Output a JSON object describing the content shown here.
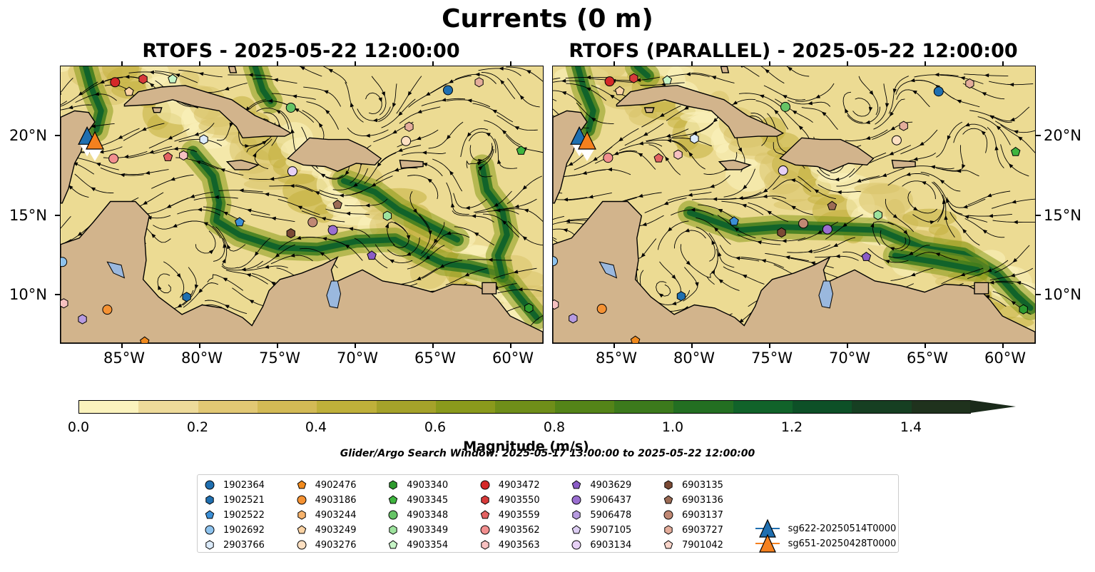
{
  "figure": {
    "title": "Currents (0 m)"
  },
  "panels": [
    {
      "title": "RTOFS - 2025-05-22 12:00:00"
    },
    {
      "title": "RTOFS (PARALLEL) - 2025-05-22 12:00:00"
    }
  ],
  "axes": {
    "x_labels": [
      "85°W",
      "80°W",
      "75°W",
      "70°W",
      "65°W",
      "60°W"
    ],
    "y_labels": [
      "20°N",
      "15°N",
      "10°N"
    ]
  },
  "colorbar": {
    "label": "Magnitude (m/s)",
    "ticks": [
      "0.0",
      "0.2",
      "0.4",
      "0.6",
      "0.8",
      "1.0",
      "1.2",
      "1.4"
    ],
    "colors": [
      "#fbf3bd",
      "#eedb9a",
      "#e2c874",
      "#d3ba55",
      "#bfb03a",
      "#a5a22a",
      "#8a9a1c",
      "#6f8e19",
      "#548418",
      "#3c7a1c",
      "#236f22",
      "#11632a",
      "#0d5027",
      "#163f22",
      "#1f321d",
      "#1c281a"
    ]
  },
  "search_window": "Glider/Argo Search Window: 2025-05-17 13:00:00 to 2025-05-22 12:00:00",
  "legend": [
    {
      "label": "1902364",
      "marker": "circle",
      "color": "#1f6fb0"
    },
    {
      "label": "1902521",
      "marker": "hexagon",
      "color": "#1f6fb0"
    },
    {
      "label": "1902522",
      "marker": "pentagon",
      "color": "#3b8fd6"
    },
    {
      "label": "1902692",
      "marker": "circle",
      "color": "#8ec3ee"
    },
    {
      "label": "2903766",
      "marker": "hexagon",
      "color": "#dcebfa"
    },
    {
      "label": "4902476",
      "marker": "pentagon",
      "color": "#f08a1e"
    },
    {
      "label": "4903186",
      "marker": "circle",
      "color": "#f59233"
    },
    {
      "label": "4903244",
      "marker": "hexagon",
      "color": "#f6b26b"
    },
    {
      "label": "4903249",
      "marker": "pentagon",
      "color": "#fbd3a4"
    },
    {
      "label": "4903276",
      "marker": "circle",
      "color": "#fde0c2"
    },
    {
      "label": "4903340",
      "marker": "hexagon",
      "color": "#2e9a2e"
    },
    {
      "label": "4903345",
      "marker": "pentagon",
      "color": "#3fb53f"
    },
    {
      "label": "4903348",
      "marker": "circle",
      "color": "#66c466"
    },
    {
      "label": "4903349",
      "marker": "hexagon",
      "color": "#9ee39e"
    },
    {
      "label": "4903354",
      "marker": "pentagon",
      "color": "#c7f5c7"
    },
    {
      "label": "4903472",
      "marker": "circle",
      "color": "#d42828"
    },
    {
      "label": "4903550",
      "marker": "hexagon",
      "color": "#d83a3a"
    },
    {
      "label": "4903559",
      "marker": "pentagon",
      "color": "#e36262"
    },
    {
      "label": "4903562",
      "marker": "circle",
      "color": "#f28f8f"
    },
    {
      "label": "4903563",
      "marker": "hexagon",
      "color": "#f7c1c1"
    },
    {
      "label": "4903629",
      "marker": "pentagon",
      "color": "#8a5cc6"
    },
    {
      "label": "5906437",
      "marker": "circle",
      "color": "#9a6ed0"
    },
    {
      "label": "5906478",
      "marker": "hexagon",
      "color": "#b79be0"
    },
    {
      "label": "5907105",
      "marker": "pentagon",
      "color": "#dccdf2"
    },
    {
      "label": "6903134",
      "marker": "circle",
      "color": "#e7d1f5"
    },
    {
      "label": "6903135",
      "marker": "hexagon",
      "color": "#7b4a35"
    },
    {
      "label": "6903136",
      "marker": "pentagon",
      "color": "#9b6b55"
    },
    {
      "label": "6903137",
      "marker": "circle",
      "color": "#c08874"
    },
    {
      "label": "6903727",
      "marker": "hexagon",
      "color": "#e4ad9b"
    },
    {
      "label": "7901042",
      "marker": "pentagon",
      "color": "#f9d5ca"
    },
    {
      "label": "sg622-20250514T0000",
      "marker": "triangle",
      "color": "#1f6fb0"
    },
    {
      "label": "sg651-20250428T0000",
      "marker": "triangle",
      "color": "#f5801e"
    }
  ],
  "map_extent": {
    "lon_min": -89,
    "lon_max": -58,
    "lat_min": 7,
    "lat_max": 24.4
  },
  "floats_panel1": [
    {
      "c": "#1f6fb0",
      "m": "circle",
      "lon": -64.1,
      "lat": 22.9
    },
    {
      "c": "#d42828",
      "m": "circle",
      "lon": -85.5,
      "lat": 23.4
    },
    {
      "c": "#d83a3a",
      "m": "hexagon",
      "lon": -83.7,
      "lat": 23.6
    },
    {
      "c": "#c7f5c7",
      "m": "pentagon",
      "lon": -81.8,
      "lat": 23.6
    },
    {
      "c": "#fbd3a4",
      "m": "pentagon",
      "lon": -84.6,
      "lat": 22.8
    },
    {
      "c": "#66c466",
      "m": "circle",
      "lon": -74.2,
      "lat": 21.8
    },
    {
      "c": "#e4ad9b",
      "m": "hexagon",
      "lon": -62.1,
      "lat": 23.4
    },
    {
      "c": "#e4ad9b",
      "m": "hexagon",
      "lon": -66.6,
      "lat": 20.6
    },
    {
      "c": "#fde0c2",
      "m": "circle",
      "lon": -66.8,
      "lat": 19.7
    },
    {
      "c": "#3fb53f",
      "m": "pentagon",
      "lon": -59.4,
      "lat": 19.1
    },
    {
      "c": "#dcebfa",
      "m": "hexagon",
      "lon": -79.8,
      "lat": 19.8
    },
    {
      "c": "#f28f8f",
      "m": "circle",
      "lon": -85.6,
      "lat": 18.6
    },
    {
      "c": "#e36262",
      "m": "pentagon",
      "lon": -82.1,
      "lat": 18.7
    },
    {
      "c": "#f7c1c1",
      "m": "hexagon",
      "lon": -81.1,
      "lat": 18.8
    },
    {
      "c": "#e7d1f5",
      "m": "circle",
      "lon": -74.1,
      "lat": 17.8
    },
    {
      "c": "#9b6b55",
      "m": "pentagon",
      "lon": -71.2,
      "lat": 15.7
    },
    {
      "c": "#9ee39e",
      "m": "hexagon",
      "lon": -68.0,
      "lat": 15.0
    },
    {
      "c": "#3b8fd6",
      "m": "pentagon",
      "lon": -77.5,
      "lat": 14.6
    },
    {
      "c": "#c08874",
      "m": "circle",
      "lon": -72.8,
      "lat": 14.6
    },
    {
      "c": "#9a6ed0",
      "m": "circle",
      "lon": -71.5,
      "lat": 14.1
    },
    {
      "c": "#7b4a35",
      "m": "hexagon",
      "lon": -74.2,
      "lat": 13.9
    },
    {
      "c": "#8a5cc6",
      "m": "pentagon",
      "lon": -69.0,
      "lat": 12.5
    },
    {
      "c": "#8ec3ee",
      "m": "circle",
      "lon": -88.9,
      "lat": 12.1
    },
    {
      "c": "#1f6fb0",
      "m": "hexagon",
      "lon": -80.9,
      "lat": 9.9
    },
    {
      "c": "#f7c1c1",
      "m": "hexagon",
      "lon": -88.8,
      "lat": 9.5
    },
    {
      "c": "#f59233",
      "m": "circle",
      "lon": -86.0,
      "lat": 9.1
    },
    {
      "c": "#b79be0",
      "m": "hexagon",
      "lon": -87.6,
      "lat": 8.5
    },
    {
      "c": "#2e9a2e",
      "m": "hexagon",
      "lon": -58.9,
      "lat": 9.2
    },
    {
      "c": "#f08a1e",
      "m": "pentagon",
      "lon": -83.6,
      "lat": 7.1
    }
  ],
  "gliders": [
    {
      "c": "#1f6fb0",
      "lon": -87.3,
      "lat": 19.9
    },
    {
      "c": "#f5801e",
      "lon": -86.8,
      "lat": 19.6
    }
  ]
}
